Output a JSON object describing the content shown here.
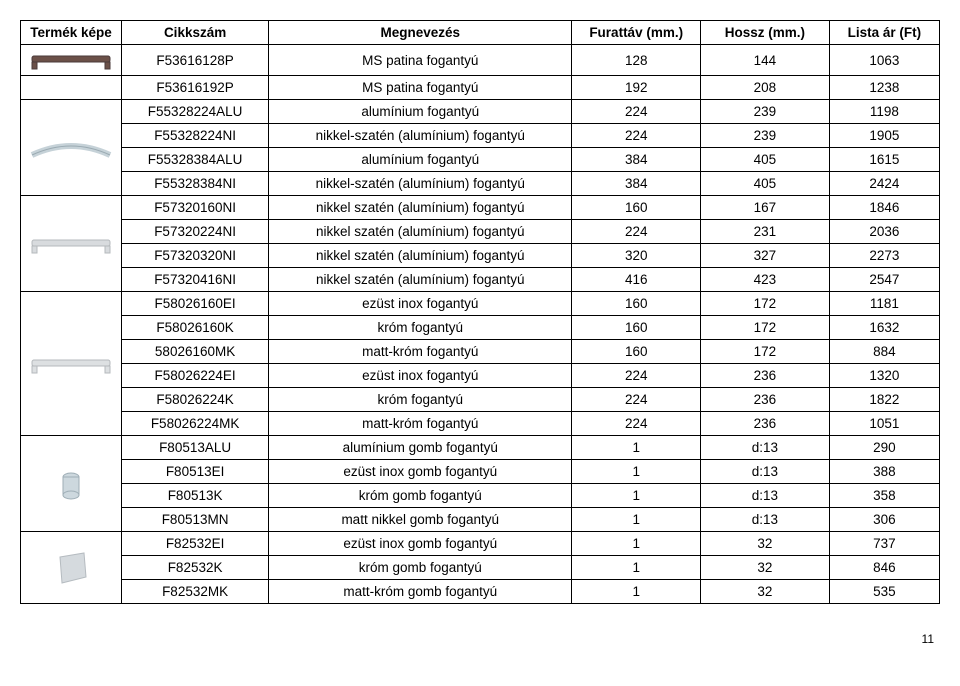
{
  "headers": {
    "image": "Termék képe",
    "code": "Cikkszám",
    "name": "Megnevezés",
    "fur": "Furattáv (mm.)",
    "hossz": "Hossz (mm.)",
    "price": "Lista ár (Ft)"
  },
  "page_number": "11",
  "groups": [
    {
      "image": "handle-bar-dark",
      "rowspan": 1,
      "rows": [
        {
          "code": "F53616128P",
          "name": "MS patina fogantyú",
          "fur": "128",
          "hossz": "144",
          "price": "1063"
        }
      ]
    },
    {
      "image": "none",
      "rowspan": 1,
      "rows": [
        {
          "code": "F53616192P",
          "name": "MS patina fogantyú",
          "fur": "192",
          "hossz": "208",
          "price": "1238"
        }
      ]
    },
    {
      "image": "handle-arc-silver",
      "rowspan": 4,
      "rows": [
        {
          "code": "F55328224ALU",
          "name": "alumínium fogantyú",
          "fur": "224",
          "hossz": "239",
          "price": "1198"
        },
        {
          "code": "F55328224NI",
          "name": "nikkel-szatén (alumínium) fogantyú",
          "fur": "224",
          "hossz": "239",
          "price": "1905"
        },
        {
          "code": "F55328384ALU",
          "name": "alumínium fogantyú",
          "fur": "384",
          "hossz": "405",
          "price": "1615"
        },
        {
          "code": "F55328384NI",
          "name": "nikkel-szatén (alumínium) fogantyú",
          "fur": "384",
          "hossz": "405",
          "price": "2424"
        }
      ]
    },
    {
      "image": "handle-bar-silver",
      "rowspan": 4,
      "rows": [
        {
          "code": "F57320160NI",
          "name": "nikkel szatén (alumínium) fogantyú",
          "fur": "160",
          "hossz": "167",
          "price": "1846"
        },
        {
          "code": "F57320224NI",
          "name": "nikkel szatén (alumínium) fogantyú",
          "fur": "224",
          "hossz": "231",
          "price": "2036"
        },
        {
          "code": "F57320320NI",
          "name": "nikkel szatén (alumínium) fogantyú",
          "fur": "320",
          "hossz": "327",
          "price": "2273"
        },
        {
          "code": "F57320416NI",
          "name": "nikkel szatén (alumínium) fogantyú",
          "fur": "416",
          "hossz": "423",
          "price": "2547"
        }
      ]
    },
    {
      "image": "handle-long-silver",
      "rowspan": 6,
      "rows": [
        {
          "code": "F58026160EI",
          "name": "ezüst inox fogantyú",
          "fur": "160",
          "hossz": "172",
          "price": "1181"
        },
        {
          "code": "F58026160K",
          "name": "króm fogantyú",
          "fur": "160",
          "hossz": "172",
          "price": "1632"
        },
        {
          "code": "58026160MK",
          "name": "matt-króm fogantyú",
          "fur": "160",
          "hossz": "172",
          "price": "884"
        },
        {
          "code": "F58026224EI",
          "name": "ezüst inox fogantyú",
          "fur": "224",
          "hossz": "236",
          "price": "1320"
        },
        {
          "code": "F58026224K",
          "name": "króm fogantyú",
          "fur": "224",
          "hossz": "236",
          "price": "1822"
        },
        {
          "code": "F58026224MK",
          "name": "matt-króm fogantyú",
          "fur": "224",
          "hossz": "236",
          "price": "1051"
        }
      ]
    },
    {
      "image": "knob-cylinder",
      "rowspan": 4,
      "rows": [
        {
          "code": "F80513ALU",
          "name": "alumínium gomb fogantyú",
          "fur": "1",
          "hossz": "d:13",
          "price": "290"
        },
        {
          "code": "F80513EI",
          "name": "ezüst inox gomb fogantyú",
          "fur": "1",
          "hossz": "d:13",
          "price": "388"
        },
        {
          "code": "F80513K",
          "name": "króm gomb fogantyú",
          "fur": "1",
          "hossz": "d:13",
          "price": "358"
        },
        {
          "code": "F80513MN",
          "name": "matt nikkel gomb fogantyú",
          "fur": "1",
          "hossz": "d:13",
          "price": "306"
        }
      ]
    },
    {
      "image": "knob-square",
      "rowspan": 3,
      "rows": [
        {
          "code": "F82532EI",
          "name": "ezüst inox gomb fogantyú",
          "fur": "1",
          "hossz": "32",
          "price": "737"
        },
        {
          "code": "F82532K",
          "name": "króm gomb fogantyú",
          "fur": "1",
          "hossz": "32",
          "price": "846"
        },
        {
          "code": "F82532MK",
          "name": "matt-króm gomb fogantyú",
          "fur": "1",
          "hossz": "32",
          "price": "535"
        }
      ]
    }
  ],
  "image_styles": {
    "handle-bar-dark": {
      "stroke": "#4a3a3a",
      "fill": "#6b5048"
    },
    "handle-arc-silver": {
      "stroke": "#9aaab2",
      "fill": "#c6d2d8"
    },
    "handle-bar-silver": {
      "stroke": "#b5b9bc",
      "fill": "#d8dbde"
    },
    "handle-long-silver": {
      "stroke": "#b5b9bc",
      "fill": "#dde0e2"
    },
    "knob-cylinder": {
      "stroke": "#9faeb6",
      "fill": "#cdd8de"
    },
    "knob-square": {
      "stroke": "#b5bbc0",
      "fill": "#d5dade"
    }
  }
}
